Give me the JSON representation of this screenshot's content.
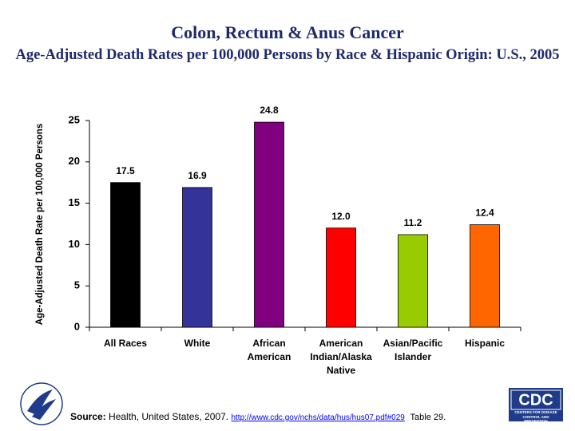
{
  "chart_data": {
    "type": "bar",
    "title": "Colon, Rectum & Anus Cancer",
    "subtitle": "Age-Adjusted Death Rates per 100,000 Persons by Race & Hispanic Origin: U.S., 2005",
    "y_label": "Age-Adjusted Death Rate per 100,000 Persons",
    "categories": [
      "All Races",
      "White",
      "African American",
      "American Indian/Alaska Native",
      "Asian/Pacific Islander",
      "Hispanic"
    ],
    "values": [
      17.5,
      16.9,
      24.8,
      12.0,
      11.2,
      12.4
    ],
    "value_labels": [
      "17.5",
      "16.9",
      "24.8",
      "12.0",
      "11.2",
      "12.4"
    ],
    "colors": [
      "#000000",
      "#333399",
      "#800080",
      "#ff0000",
      "#99cc00",
      "#ff6600"
    ],
    "ylim": [
      0,
      25
    ],
    "yticks": [
      0,
      5,
      10,
      15,
      20,
      25
    ],
    "grid": false
  },
  "footer": {
    "source_label": "Source:",
    "source_text": "Health, United States, 2007.",
    "link": "http://www.cdc.gov/nchs/data/hus/hus07.pdf#029",
    "table": "Table 29."
  },
  "logo": {
    "cdc": "CDC",
    "cdc_sub": "CENTERS FOR DISEASE CONTROL AND PREVENTION"
  }
}
